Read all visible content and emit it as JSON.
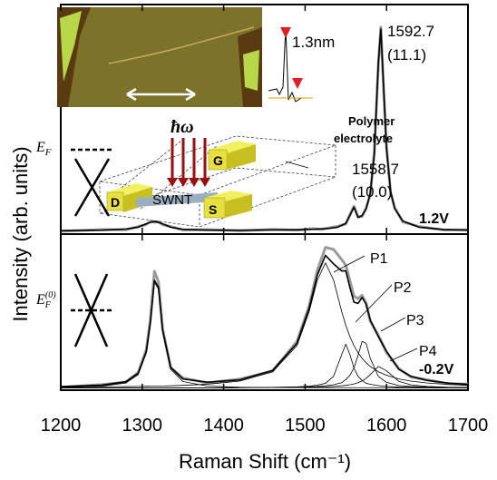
{
  "chart_data": [
    {
      "type": "line",
      "ylabel": "Intensity (arb. units)",
      "xlim": [
        1200,
        1700
      ],
      "ylim": [
        0,
        100
      ],
      "xticks": [
        1200,
        1300,
        1400,
        1500,
        1600,
        1700
      ],
      "x": [
        1200,
        1250,
        1280,
        1295,
        1305,
        1310,
        1315,
        1320,
        1325,
        1335,
        1350,
        1380,
        1420,
        1460,
        1490,
        1510,
        1520,
        1530,
        1540,
        1550,
        1555,
        1560,
        1565,
        1570,
        1575,
        1580,
        1585,
        1590,
        1593,
        1597,
        1600,
        1605,
        1610,
        1620,
        1640,
        1670,
        1700
      ],
      "series": [
        {
          "color": "#9a9a9a",
          "values": [
            1.2,
            2.0,
            1.9,
            3.3,
            4.2,
            5.6,
            5.2,
            5.4,
            4.1,
            3.3,
            1.8,
            2.0,
            1.4,
            2.1,
            1.7,
            2.4,
            2.0,
            2.8,
            3.4,
            4.4,
            8.6,
            12.2,
            7.6,
            7.7,
            11.5,
            17.2,
            35.8,
            74.2,
            90.1,
            58.8,
            37.9,
            18.1,
            11.6,
            5.3,
            3.3,
            1.8,
            1.9
          ]
        },
        {
          "color": "#000000",
          "values": [
            1.5,
            1.7,
            2.2,
            3.0,
            4.5,
            5.1,
            5.5,
            5.1,
            4.5,
            3.0,
            2.1,
            1.7,
            1.7,
            1.8,
            1.9,
            2.1,
            2.3,
            2.5,
            3.0,
            4.7,
            8.0,
            11.7,
            7.2,
            8.1,
            11.0,
            17.8,
            34.9,
            75.0,
            89.3,
            59.6,
            37.2,
            18.6,
            11.1,
            5.7,
            3.0,
            2.0,
            1.7
          ]
        }
      ],
      "peak_labels": [
        "1592.7",
        "(11.1)",
        "1558.7",
        "(10.0)"
      ],
      "voltage": "1.2V",
      "inset_label": "1.3nm",
      "electrolyte": [
        "Polymer",
        "electrolyte"
      ],
      "photon": "ħω",
      "fermi": {
        "base": "E",
        "sub": "F"
      },
      "device": [
        "D",
        "G",
        "S",
        "SWNT"
      ]
    },
    {
      "type": "line",
      "xlabel": "Raman Shift (cm⁻¹)",
      "xlim": [
        1200,
        1700
      ],
      "ylim": [
        0,
        100
      ],
      "xticks": [
        1200,
        1300,
        1400,
        1500,
        1600,
        1700
      ],
      "x": [
        1200,
        1250,
        1280,
        1295,
        1305,
        1310,
        1315,
        1320,
        1325,
        1335,
        1350,
        1380,
        1420,
        1460,
        1490,
        1505,
        1515,
        1525,
        1535,
        1545,
        1550,
        1555,
        1560,
        1565,
        1570,
        1575,
        1580,
        1590,
        1600,
        1615,
        1630,
        1650,
        1675,
        1700
      ],
      "series": [
        {
          "color": "#9a9a9a",
          "values": [
            1.8,
            3.6,
            5.1,
            11.4,
            25.9,
            45.1,
            76.2,
            69.3,
            39.5,
            14.2,
            7.8,
            4.6,
            7.1,
            12.1,
            31.2,
            54.0,
            76.8,
            91.5,
            90.2,
            83.6,
            80.1,
            70.2,
            60.3,
            58.7,
            60.8,
            55.6,
            44.2,
            35.1,
            24.1,
            13.9,
            8.4,
            6.7,
            4.1,
            3.9
          ]
        },
        {
          "color": "#000000",
          "values": [
            2.3,
            3.2,
            5.5,
            10.8,
            24.7,
            43.4,
            70.4,
            65.9,
            38.7,
            14.7,
            7.2,
            5.1,
            6.6,
            12.7,
            30.0,
            52.6,
            73.7,
            86.4,
            80.9,
            76.4,
            76.5,
            65.8,
            56.4,
            55.6,
            59.4,
            55.0,
            45.0,
            34.3,
            24.9,
            13.4,
            8.9,
            6.2,
            4.6,
            3.7
          ]
        },
        {
          "color": "#000000",
          "values": [
            1.8,
            2.5,
            4.7,
            9.9,
            23.7,
            42.3,
            69.3,
            64.7,
            37.5,
            13.4,
            5.5,
            2.6,
            1.9,
            1.7,
            1.7,
            1.6,
            1.6,
            1.6,
            1.6,
            1.6,
            1.6,
            1.6,
            1.6,
            1.6,
            1.6,
            1.6,
            1.6,
            1.6,
            1.6,
            1.5,
            1.5,
            1.5,
            1.5,
            1.5
          ]
        },
        {
          "color": "#000000",
          "values": [
            2.0,
            2.2,
            2.3,
            2.4,
            2.5,
            2.6,
            2.6,
            2.7,
            2.7,
            2.8,
            3.1,
            3.8,
            5.8,
            11.8,
            28.5,
            50.3,
            70.5,
            81.5,
            70.5,
            50.3,
            41.5,
            34.3,
            28.5,
            24.0,
            20.4,
            17.5,
            15.2,
            11.8,
            9.5,
            7.2,
            5.8,
            4.6,
            3.7,
            3.1
          ]
        },
        {
          "color": "#000000",
          "values": [
            1.5,
            1.5,
            1.5,
            1.5,
            1.5,
            1.5,
            1.5,
            1.5,
            1.5,
            1.5,
            1.5,
            1.5,
            1.6,
            1.8,
            2.1,
            2.6,
            3.2,
            4.4,
            8.9,
            22.9,
            29.5,
            22.9,
            14.1,
            8.9,
            6.2,
            4.4,
            3.8,
            2.9,
            2.4,
            2.0,
            1.9,
            1.7,
            1.6,
            1.6
          ]
        },
        {
          "color": "#000000",
          "values": [
            1.5,
            1.5,
            1.5,
            1.5,
            1.5,
            1.5,
            1.5,
            1.5,
            1.5,
            1.5,
            1.5,
            1.5,
            1.6,
            1.8,
            2.0,
            2.2,
            2.4,
            2.8,
            3.5,
            4.8,
            6.8,
            9.5,
            14.2,
            22.3,
            31.3,
            29.9,
            20.4,
            8.8,
            5.0,
            3.0,
            2.4,
            2.0,
            1.8,
            1.7
          ]
        },
        {
          "color": "#000000",
          "values": [
            1.5,
            1.5,
            1.5,
            1.5,
            1.5,
            1.5,
            1.5,
            1.5,
            1.5,
            1.5,
            1.5,
            1.5,
            1.6,
            1.7,
            1.8,
            1.9,
            2.0,
            2.1,
            2.4,
            2.8,
            3.1,
            3.5,
            4.0,
            4.8,
            5.9,
            7.6,
            10.0,
            15.2,
            12.4,
            5.7,
            3.4,
            2.4,
            1.9,
            1.8
          ]
        }
      ],
      "components": [
        "P1",
        "P2",
        "P3",
        "P4"
      ],
      "voltage": "-0.2V",
      "fermi": {
        "base": "E",
        "sub": "F",
        "sup": "(0)"
      }
    }
  ]
}
